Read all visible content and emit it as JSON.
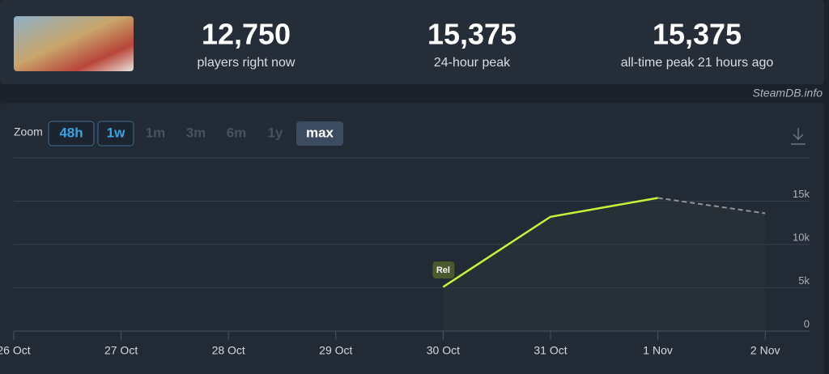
{
  "header": {
    "stats": [
      {
        "value": "12,750",
        "label": "players right now"
      },
      {
        "value": "15,375",
        "label": "24-hour peak"
      },
      {
        "value": "15,375",
        "label": "all-time peak 21 hours ago"
      }
    ],
    "source": "SteamDB.info"
  },
  "zoom": {
    "label": "Zoom",
    "options": [
      "48h",
      "1w",
      "1m",
      "3m",
      "6m",
      "1y",
      "max"
    ]
  },
  "chart_data": {
    "type": "line",
    "categories": [
      "26 Oct",
      "27 Oct",
      "28 Oct",
      "29 Oct",
      "30 Oct",
      "31 Oct",
      "1 Nov",
      "2 Nov"
    ],
    "series": [
      {
        "color": "#c8f23a",
        "dash": false,
        "values": [
          null,
          null,
          null,
          null,
          5100,
          13200,
          15375,
          null
        ]
      },
      {
        "color": "#8d939b",
        "dash": true,
        "values": [
          null,
          null,
          null,
          null,
          null,
          null,
          15375,
          13600
        ]
      }
    ],
    "ylim": [
      0,
      20000
    ],
    "yticks": [
      0,
      {
        "value": 5000,
        "label": "5k"
      },
      {
        "value": 10000,
        "label": "10k"
      },
      {
        "value": 15000,
        "label": "15k"
      }
    ],
    "grid": true,
    "annotations": [
      {
        "text": "Rel",
        "x": "30 Oct"
      }
    ]
  }
}
